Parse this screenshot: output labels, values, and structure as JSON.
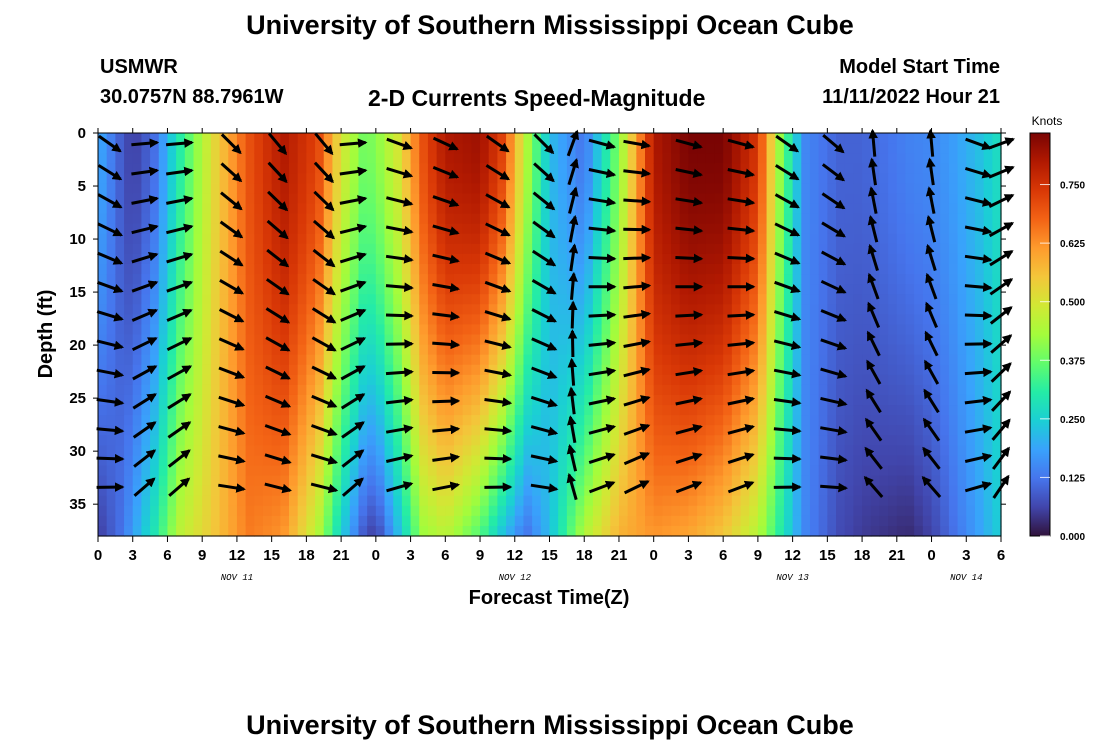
{
  "titles": {
    "top": "University of Southern Mississippi Ocean Cube",
    "bottom": "University of Southern Mississippi Ocean Cube"
  },
  "station": {
    "name": "USMWR",
    "coords": "30.0757N  88.7961W"
  },
  "model": {
    "label": "Model Start Time",
    "start": "11/11/2022 Hour 21"
  },
  "chart_data": {
    "type": "heatmap",
    "title": "2-D Currents Speed-Magnitude",
    "xlabel": "Forecast Time(Z)",
    "ylabel": "Depth (ft)",
    "x_ticks": [
      "0",
      "3",
      "6",
      "9",
      "12",
      "15",
      "18",
      "21",
      "0",
      "3",
      "6",
      "9",
      "12",
      "15",
      "18",
      "21",
      "0",
      "3",
      "6",
      "9",
      "12",
      "15",
      "18",
      "21",
      "0",
      "3",
      "6"
    ],
    "x_range_hours": [
      0,
      78
    ],
    "day_labels": [
      {
        "label": "NOV 11",
        "hour": 12
      },
      {
        "label": "NOV 12",
        "hour": 36
      },
      {
        "label": "NOV 13",
        "hour": 60
      },
      {
        "label": "NOV 14",
        "hour": 75
      }
    ],
    "y_ticks": [
      0,
      5,
      10,
      15,
      20,
      25,
      30,
      35
    ],
    "ylim": [
      0,
      38
    ],
    "y_inverted": true,
    "colorbar": {
      "unit": "Knots",
      "ticks": [
        "0.000",
        "0.125",
        "0.250",
        "0.375",
        "0.500",
        "0.625",
        "0.750"
      ],
      "range": [
        0,
        0.86
      ]
    },
    "colors": [
      "#30123b",
      "#4145ab",
      "#4675ed",
      "#39a2fc",
      "#1bcfd4",
      "#24eca6",
      "#61fc6c",
      "#a4fc3b",
      "#d1e834",
      "#f3c63a",
      "#fe9b2d",
      "#f36315",
      "#d93806",
      "#b11901",
      "#7a0403"
    ],
    "speed_profile": {
      "hours": [
        0,
        2,
        3,
        5,
        7,
        10,
        13,
        16,
        19,
        21,
        23,
        24,
        26,
        28,
        30,
        33,
        35,
        37,
        39,
        42,
        45,
        48,
        51,
        54,
        57,
        59,
        61,
        64,
        66,
        68,
        70,
        72,
        74,
        76,
        78
      ],
      "surface": [
        0.2,
        0.09,
        0.05,
        0.12,
        0.3,
        0.52,
        0.7,
        0.8,
        0.72,
        0.5,
        0.38,
        0.4,
        0.5,
        0.7,
        0.8,
        0.82,
        0.72,
        0.45,
        0.22,
        0.12,
        0.4,
        0.8,
        0.86,
        0.86,
        0.74,
        0.4,
        0.15,
        0.1,
        0.1,
        0.12,
        0.14,
        0.15,
        0.18,
        0.22,
        0.28
      ],
      "bottom": [
        0.05,
        0.12,
        0.18,
        0.3,
        0.46,
        0.55,
        0.65,
        0.62,
        0.45,
        0.25,
        0.08,
        0.05,
        0.22,
        0.42,
        0.46,
        0.35,
        0.22,
        0.12,
        0.22,
        0.45,
        0.58,
        0.62,
        0.6,
        0.55,
        0.45,
        0.3,
        0.15,
        0.07,
        0.05,
        0.04,
        0.03,
        0.06,
        0.12,
        0.18,
        0.25
      ]
    },
    "direction_profile": {
      "hours": [
        1,
        4,
        7,
        11.5,
        15.5,
        19.5,
        22,
        26,
        30,
        34.5,
        38.5,
        41,
        43.5,
        46.5,
        51,
        55.5,
        59.5,
        63.5,
        67,
        72,
        76,
        78
      ],
      "angles_deg": [
        -35,
        5,
        5,
        -45,
        -50,
        -50,
        5,
        -20,
        -25,
        -35,
        -45,
        70,
        -15,
        -10,
        -15,
        -15,
        -35,
        -40,
        95,
        95,
        -20,
        20
      ]
    }
  }
}
